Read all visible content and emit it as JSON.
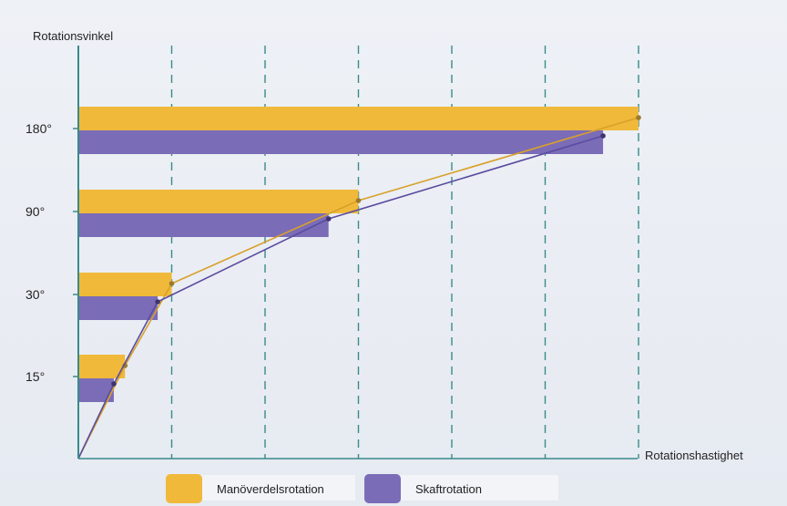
{
  "chart_data": {
    "type": "bar",
    "orientation": "horizontal",
    "title": "",
    "ylabel": "Rotationsvinkel",
    "xlabel": "Rotationshastighet",
    "categories": [
      "15°",
      "30°",
      "90°",
      "180°"
    ],
    "xlim": [
      0,
      6
    ],
    "grid": "vertical dashed",
    "series": [
      {
        "name": "Manöverdelsrotation",
        "color": "#f0b93a",
        "values": [
          0.5,
          1.0,
          3.0,
          6.0
        ]
      },
      {
        "name": "Skaftrotation",
        "color": "#7b6cb8",
        "values": [
          0.38,
          0.85,
          2.68,
          5.62
        ]
      }
    ],
    "trend_lines": [
      {
        "series": "Manöverdelsrotation",
        "color": "#f0b93a",
        "points": [
          [
            0,
            0
          ],
          [
            0.5,
            15
          ],
          [
            1.0,
            30
          ],
          [
            3.0,
            90
          ],
          [
            6.0,
            180
          ]
        ]
      },
      {
        "series": "Skaftrotation",
        "color": "#7b6cb8",
        "points": [
          [
            0,
            0
          ],
          [
            0.38,
            15
          ],
          [
            0.85,
            30
          ],
          [
            2.68,
            90
          ],
          [
            5.62,
            180
          ]
        ]
      }
    ],
    "legend_position": "bottom"
  }
}
